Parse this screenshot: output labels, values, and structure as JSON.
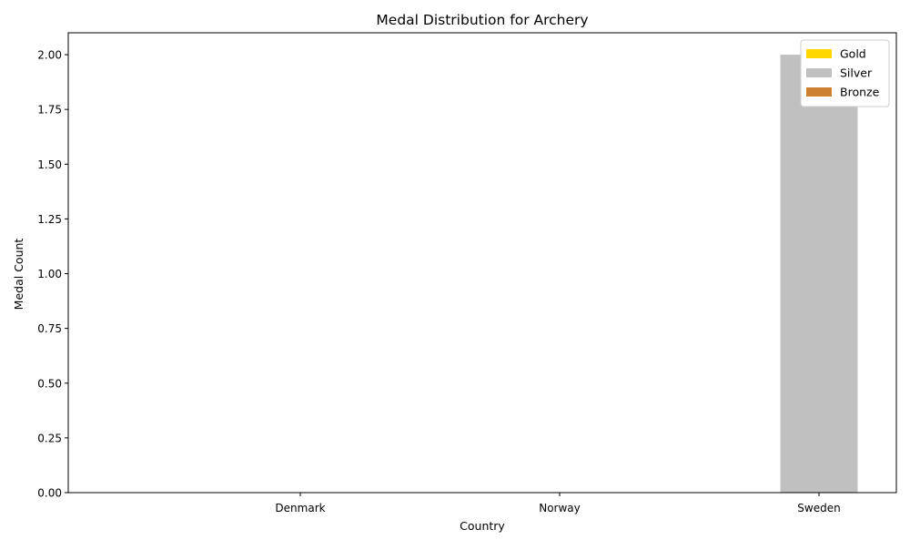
{
  "chart_data": {
    "type": "bar",
    "title": "Medal Distribution for Archery",
    "xlabel": "Country",
    "ylabel": "Medal Count",
    "categories": [
      "Denmark",
      "Norway",
      "Sweden"
    ],
    "series": [
      {
        "name": "Gold",
        "color": "#FFD700",
        "values": [
          0,
          0,
          0
        ]
      },
      {
        "name": "Silver",
        "color": "#C0C0C0",
        "values": [
          0,
          0,
          2
        ]
      },
      {
        "name": "Bronze",
        "color": "#CD7F32",
        "values": [
          0,
          0,
          0
        ]
      }
    ],
    "ylim": [
      0,
      2.1
    ],
    "yticks": [
      "0.00",
      "0.25",
      "0.50",
      "0.75",
      "1.00",
      "1.25",
      "1.50",
      "1.75",
      "2.00"
    ],
    "grid": false,
    "legend_position": "top-right"
  }
}
